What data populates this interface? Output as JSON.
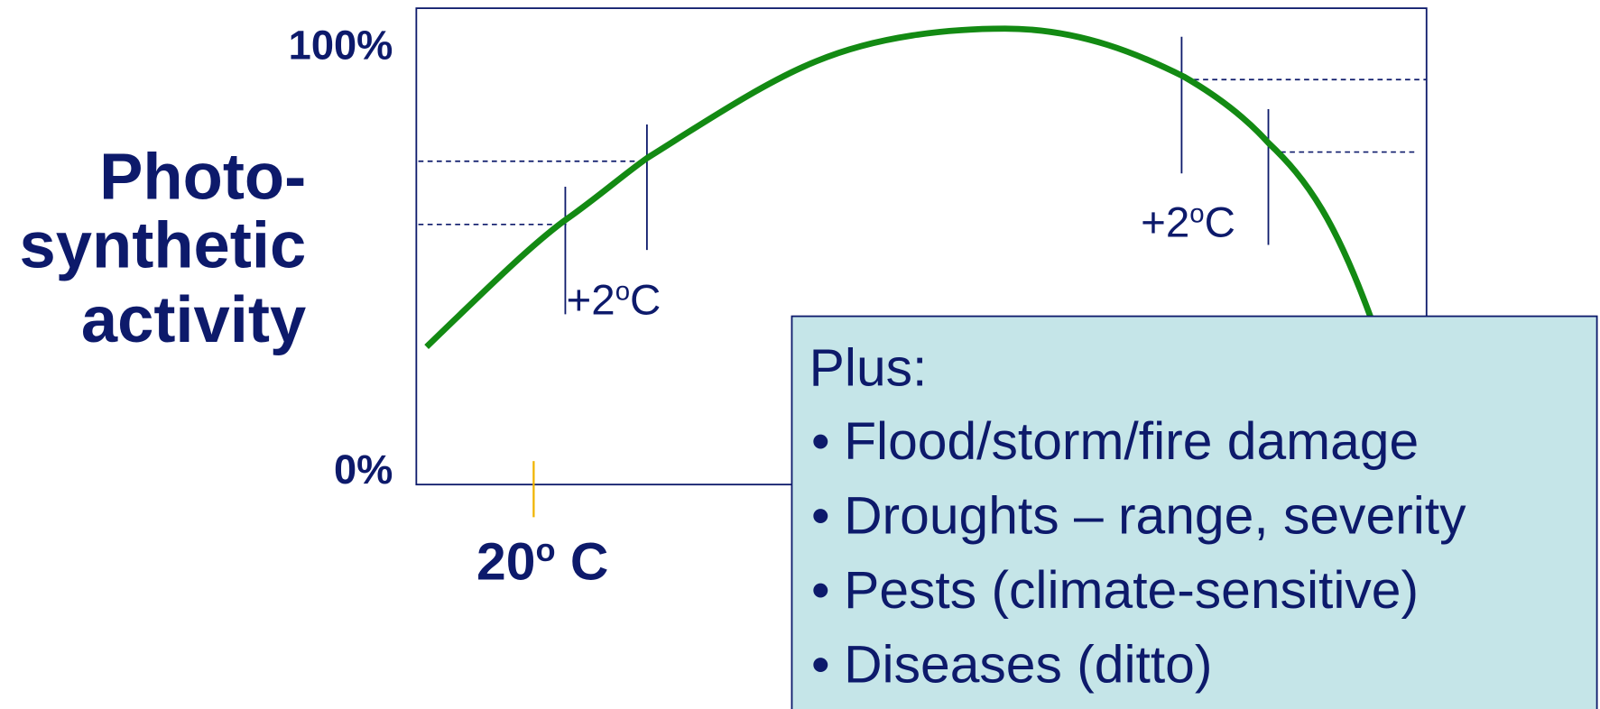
{
  "y_axis": {
    "label_lines": [
      "Photo-",
      "synthetic",
      "activity"
    ],
    "top_label": "100%",
    "bottom_label": "0%"
  },
  "x_axis": {
    "label": {
      "base": "20",
      "sup": "o",
      "rest": " C"
    }
  },
  "annotations": [
    {
      "base": "+2",
      "sup": "o",
      "rest": "C"
    },
    {
      "base": "+2",
      "sup": "o",
      "rest": "C"
    }
  ],
  "box": {
    "heading": "Plus:",
    "bullet": "•",
    "items": [
      "Flood/storm/fire damage",
      "Droughts – range, severity",
      "Pests (climate-sensitive)",
      "Diseases (ditto)"
    ]
  }
}
